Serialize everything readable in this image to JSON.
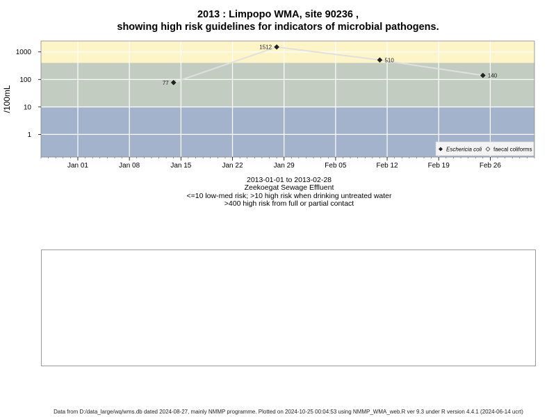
{
  "title_line1": "2013 : Limpopo WMA, site 90236 ,",
  "title_line2": "showing high risk guidelines for indicators of microbial pathogens.",
  "subtitle": {
    "date_range": "2013-01-01 to 2013-02-28",
    "site_name": "Zeekoegat Sewage Effluent",
    "risk_note_1": "<=10 low-med risk; >10 high risk when drinking untreated water",
    "risk_note_2": ">400 high risk from full or partial contact"
  },
  "footer": "Data from D:/data_large/wq/wms.db dated 2024-08-27, mainly NMMP programme. Plotted on 2024-10-25 00:04:53 using NMMP_WMA_web.R ver 9.3 under R version 4.4.1 (2024-06-14 ucrt)",
  "colors": {
    "high_contact_band": "#fdf5c8",
    "high_drinking_band": "#c3ccc1",
    "low_band": "#a3b3cb",
    "line": "#e0e0e0",
    "grid": "#ffffff"
  },
  "chart_data": {
    "type": "line",
    "ylabel": "/100mL",
    "y_scale": "log",
    "y_ticks": [
      1,
      10,
      100,
      1000
    ],
    "y_tick_labels": [
      "1",
      "10",
      "100",
      "1000"
    ],
    "ylim": [
      0.15,
      2500
    ],
    "xlim": [
      "2012-12-27",
      "2013-03-04"
    ],
    "x_ticks": [
      "2013-01-01",
      "2013-01-08",
      "2013-01-15",
      "2013-01-22",
      "2013-01-29",
      "2013-02-05",
      "2013-02-12",
      "2013-02-19",
      "2013-02-26"
    ],
    "x_tick_labels": [
      "Jan 01",
      "Jan 08",
      "Jan 15",
      "Jan 22",
      "Jan 29",
      "Feb 05",
      "Feb 12",
      "Feb 19",
      "Feb 26"
    ],
    "bands": [
      {
        "from": 400,
        "to": 2500,
        "color": "#fdf5c8"
      },
      {
        "from": 10,
        "to": 400,
        "color": "#c3ccc1"
      },
      {
        "from": 0.15,
        "to": 10,
        "color": "#a3b3cb"
      }
    ],
    "series": [
      {
        "name": "Eschericia coli",
        "marker": "filled-diamond",
        "points": [
          {
            "x": "2013-01-14",
            "y": 77,
            "label": "77"
          },
          {
            "x": "2013-01-28",
            "y": 1512,
            "label": "1512"
          },
          {
            "x": "2013-02-11",
            "y": 510,
            "label": "510"
          },
          {
            "x": "2013-02-25",
            "y": 140,
            "label": "140"
          }
        ]
      }
    ],
    "legend": {
      "position": "bottom-right",
      "entries": [
        "Eschericia coli",
        "faecal coliforms"
      ]
    }
  }
}
